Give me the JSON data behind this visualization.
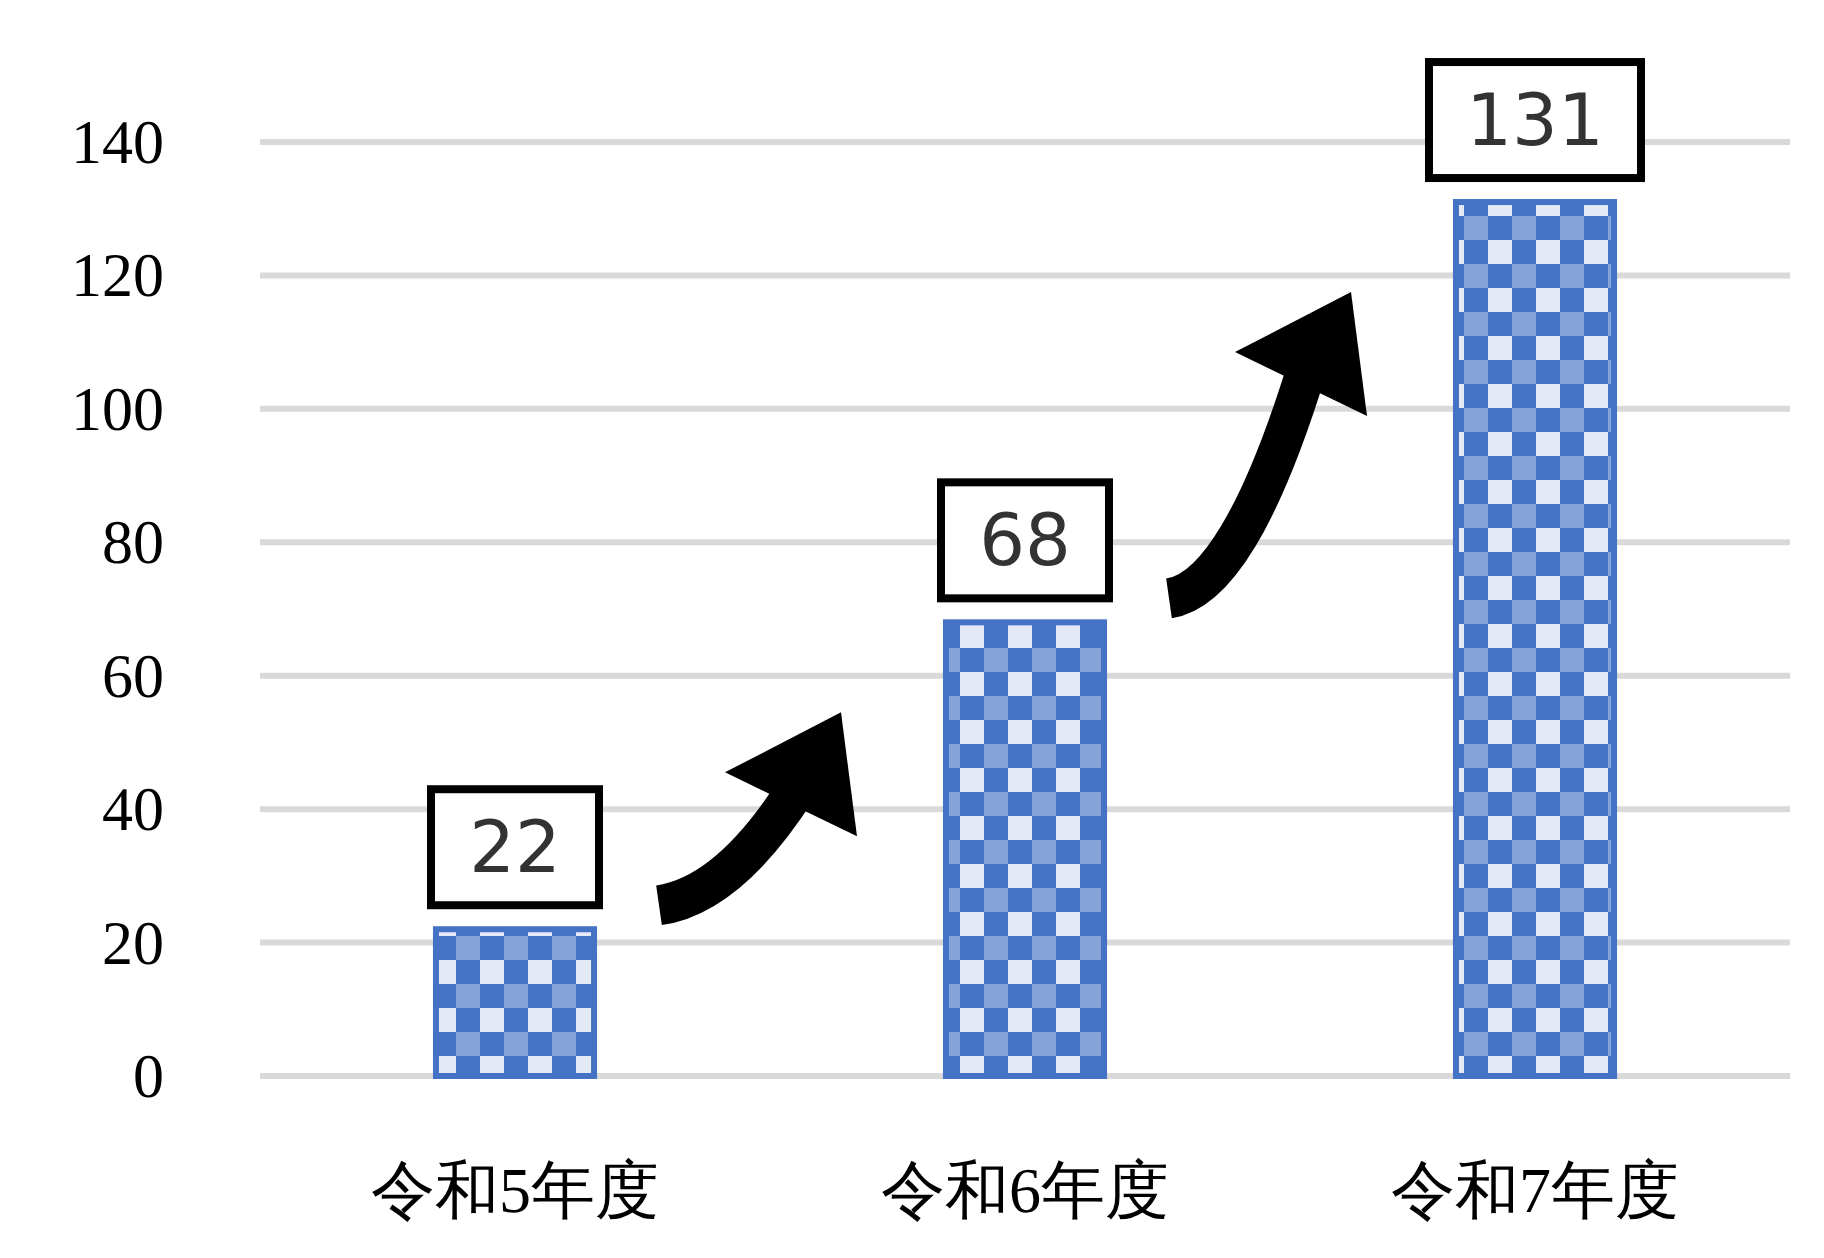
{
  "chart_data": {
    "type": "bar",
    "categories": [
      "令和5年度",
      "令和6年度",
      "令和7年度"
    ],
    "values": [
      22,
      68,
      131
    ],
    "color": "#4472c4",
    "ylim": [
      0,
      140
    ],
    "yticks": [
      0,
      20,
      40,
      60,
      80,
      100,
      120,
      140
    ],
    "grid": "y",
    "data_labels": true
  }
}
